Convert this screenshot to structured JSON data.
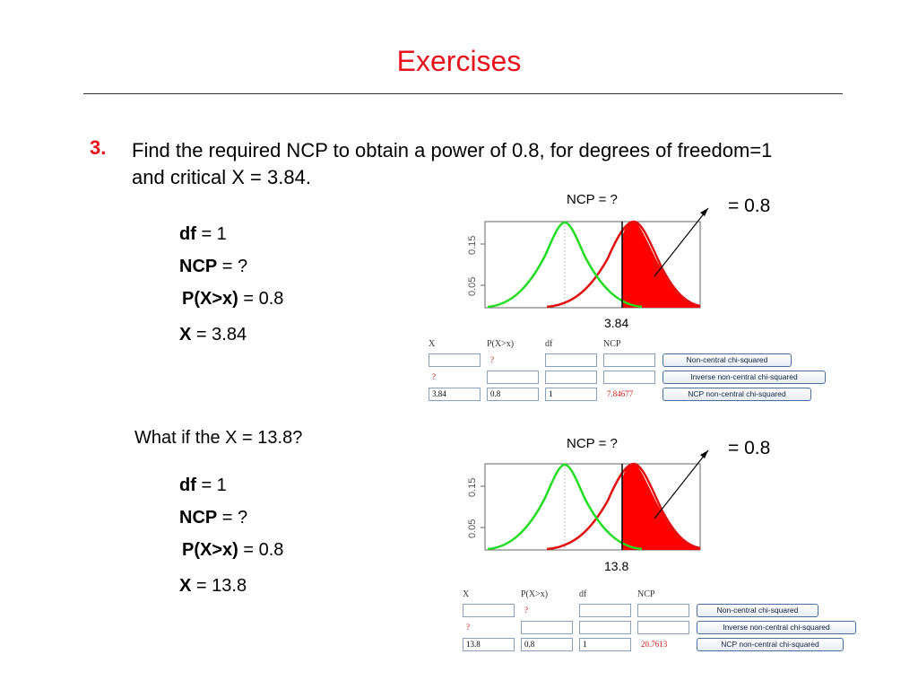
{
  "slide": {
    "title": "Exercises"
  },
  "exercise": {
    "number": "3.",
    "text": "Find the required NCP to obtain a power of 0.8, for degrees of freedom=1 and critical X = 3.84."
  },
  "case1": {
    "params": [
      {
        "label": "df",
        "value": " = 1"
      },
      {
        "label": "NCP",
        "value": " = ?"
      },
      {
        "label": "P(X>x)",
        "value": " = 0.8"
      },
      {
        "label": "X",
        "value": " = 3.84"
      }
    ],
    "plot": {
      "ncp_label": "NCP = ?",
      "power_label": "= 0.8",
      "critical_label": "3.84",
      "y_ticks": [
        "0.05",
        "0.15"
      ]
    },
    "calculator": {
      "headers": [
        "X",
        "P(X>x)",
        "df",
        "NCP"
      ],
      "row1": {
        "x": "",
        "p": "?",
        "df": "",
        "ncp": ""
      },
      "row2": {
        "x": "?",
        "p": "",
        "df": "",
        "ncp": ""
      },
      "row3": {
        "x": "3.84",
        "p": "0.8",
        "df": "1",
        "ncp": "7.84677"
      },
      "buttons": [
        "Non-central chi-squared",
        "Inverse non-central chi-squared",
        "NCP non-central chi-squared"
      ]
    }
  },
  "case2": {
    "question": "What if the X = 13.8?",
    "params": [
      {
        "label": "df",
        "value": " = 1"
      },
      {
        "label": "NCP",
        "value": " = ?"
      },
      {
        "label": "P(X>x)",
        "value": " = 0.8"
      },
      {
        "label": "X",
        "value": " = 13.8"
      }
    ],
    "plot": {
      "ncp_label": "NCP = ?",
      "power_label": "= 0.8",
      "critical_label": "13.8",
      "y_ticks": [
        "0.05",
        "0.15"
      ]
    },
    "calculator": {
      "headers": [
        "X",
        "P(X>x)",
        "df",
        "NCP"
      ],
      "row1": {
        "x": "",
        "p": "?",
        "df": "",
        "ncp": ""
      },
      "row2": {
        "x": "?",
        "p": "",
        "df": "",
        "ncp": ""
      },
      "row3": {
        "x": "13.8",
        "p": "0.8",
        "df": "1",
        "ncp": "20.7613"
      },
      "buttons": [
        "Non-central chi-squared",
        "Inverse non-central chi-squared",
        "NCP non-central chi-squared"
      ]
    }
  },
  "colors": {
    "title": "#e8121c",
    "null_curve": "#22dd22",
    "alt_curve": "#e01010",
    "power_fill": "#ff0000"
  }
}
